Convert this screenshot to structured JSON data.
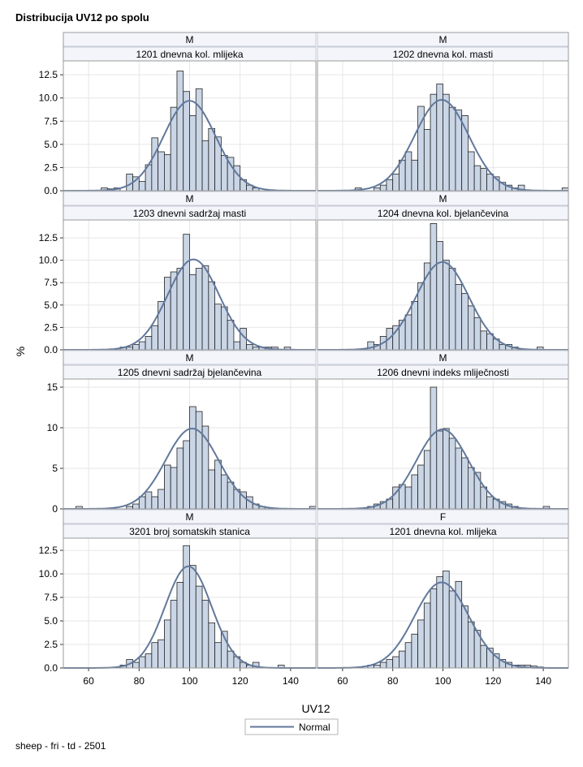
{
  "page": {
    "title": "Distribucija UV12 po spolu",
    "footnote": "sheep - fri - td - 2501"
  },
  "chart_data": {
    "type": "histogram-panel",
    "title": "Distribucija UV12 po spolu",
    "xlabel": "UV12",
    "ylabel": "%",
    "xlim": [
      50,
      150
    ],
    "x_ticks": [
      60,
      80,
      100,
      120,
      140
    ],
    "bin_width": 2.5,
    "bin_start": 52.5,
    "legend": {
      "position": "bottom-center",
      "entries": [
        "Normal"
      ]
    },
    "colors": {
      "bar_fill": "#cad6e6",
      "bar_edge": "#222222",
      "curve": "#61789c",
      "grid": "#e6e6e6",
      "header_bg": "#f3f5fb",
      "frame": "#9a9a9a"
    },
    "rows": [
      {
        "ylim": [
          0,
          14
        ],
        "y_ticks": [
          0,
          2.5,
          5,
          7.5,
          10,
          12.5
        ],
        "y_tick_labels": [
          "0.0",
          "2.5",
          "5.0",
          "7.5",
          "10.0",
          "12.5"
        ]
      },
      {
        "ylim": [
          0,
          14.5
        ],
        "y_ticks": [
          0,
          2.5,
          5,
          7.5,
          10,
          12.5
        ],
        "y_tick_labels": [
          "0.0",
          "2.5",
          "5.0",
          "7.5",
          "10.0",
          "12.5"
        ]
      },
      {
        "ylim": [
          0,
          16
        ],
        "y_ticks": [
          0,
          5,
          10,
          15
        ],
        "y_tick_labels": [
          "0",
          "5",
          "10",
          "15"
        ]
      },
      {
        "ylim": [
          0,
          13.8
        ],
        "y_ticks": [
          0,
          2.5,
          5,
          7.5,
          10,
          12.5
        ],
        "y_tick_labels": [
          "0.0",
          "2.5",
          "5.0",
          "7.5",
          "10.0",
          "12.5"
        ]
      }
    ],
    "panels": [
      {
        "sex": "M",
        "trait": "1201 dnevna kol. mlijeka",
        "normal": {
          "mean": 100,
          "sd": 10.3,
          "peak": 9.7
        },
        "bars": [
          [
            65,
            0.3
          ],
          [
            67.5,
            0.2
          ],
          [
            70,
            0.3
          ],
          [
            75,
            1.8
          ],
          [
            77.5,
            1.5
          ],
          [
            80,
            1.0
          ],
          [
            82.5,
            2.8
          ],
          [
            85,
            5.7
          ],
          [
            87.5,
            4.2
          ],
          [
            90,
            3.9
          ],
          [
            92.5,
            9.0
          ],
          [
            95,
            12.9
          ],
          [
            97.5,
            10.7
          ],
          [
            100,
            8.1
          ],
          [
            102.5,
            11.0
          ],
          [
            105,
            5.4
          ],
          [
            107.5,
            6.7
          ],
          [
            110,
            5.8
          ],
          [
            112.5,
            3.8
          ],
          [
            115,
            3.6
          ],
          [
            117.5,
            2.7
          ],
          [
            120,
            1.2
          ],
          [
            122.5,
            0.6
          ],
          [
            125,
            0.3
          ]
        ]
      },
      {
        "sex": "M",
        "trait": "1202 dnevna kol. masti",
        "normal": {
          "mean": 99.5,
          "sd": 10.8,
          "peak": 9.8
        },
        "bars": [
          [
            65,
            0.3
          ],
          [
            72.5,
            0.3
          ],
          [
            75,
            0.6
          ],
          [
            77.5,
            1.2
          ],
          [
            80,
            1.8
          ],
          [
            82.5,
            3.3
          ],
          [
            85,
            4.2
          ],
          [
            87.5,
            3.3
          ],
          [
            90,
            9.1
          ],
          [
            92.5,
            6.6
          ],
          [
            95,
            10.4
          ],
          [
            97.5,
            11.5
          ],
          [
            100,
            10.4
          ],
          [
            102.5,
            9.0
          ],
          [
            105,
            8.7
          ],
          [
            107.5,
            8.1
          ],
          [
            110,
            4.2
          ],
          [
            112.5,
            2.7
          ],
          [
            115,
            2.4
          ],
          [
            117.5,
            1.8
          ],
          [
            120,
            1.5
          ],
          [
            122.5,
            0.9
          ],
          [
            125,
            0.6
          ],
          [
            127.5,
            0.3
          ],
          [
            130,
            0.6
          ],
          [
            147.5,
            0.3
          ]
        ]
      },
      {
        "sex": "M",
        "trait": "1203 dnevni sadržaj masti",
        "normal": {
          "mean": 101.5,
          "sd": 10.2,
          "peak": 10.1
        },
        "bars": [
          [
            72.5,
            0.3
          ],
          [
            75,
            0.3
          ],
          [
            77.5,
            0.6
          ],
          [
            80,
            0.9
          ],
          [
            82.5,
            1.5
          ],
          [
            85,
            2.7
          ],
          [
            87.5,
            5.4
          ],
          [
            90,
            8.1
          ],
          [
            92.5,
            8.7
          ],
          [
            95,
            9.1
          ],
          [
            97.5,
            12.9
          ],
          [
            100,
            8.4
          ],
          [
            102.5,
            9.1
          ],
          [
            105,
            9.4
          ],
          [
            107.5,
            7.6
          ],
          [
            110,
            5.1
          ],
          [
            112.5,
            4.8
          ],
          [
            115,
            3.3
          ],
          [
            117.5,
            0.9
          ],
          [
            120,
            2.4
          ],
          [
            122.5,
            0.6
          ],
          [
            125,
            0.3
          ],
          [
            127.5,
            0.3
          ],
          [
            130,
            0.3
          ],
          [
            132.5,
            0.3
          ],
          [
            137.5,
            0.3
          ]
        ]
      },
      {
        "sex": "M",
        "trait": "1204 dnevna kol. bjelančevina",
        "normal": {
          "mean": 99.8,
          "sd": 10.5,
          "peak": 9.8
        },
        "bars": [
          [
            70,
            0.9
          ],
          [
            72.5,
            0.6
          ],
          [
            75,
            1.5
          ],
          [
            77.5,
            2.4
          ],
          [
            80,
            2.7
          ],
          [
            82.5,
            3.3
          ],
          [
            85,
            3.9
          ],
          [
            87.5,
            5.4
          ],
          [
            90,
            7.5
          ],
          [
            92.5,
            9.7
          ],
          [
            95,
            14.1
          ],
          [
            97.5,
            12.1
          ],
          [
            100,
            10.0
          ],
          [
            102.5,
            9.1
          ],
          [
            105,
            7.3
          ],
          [
            107.5,
            6.3
          ],
          [
            110,
            4.9
          ],
          [
            112.5,
            3.6
          ],
          [
            115,
            2.1
          ],
          [
            117.5,
            1.8
          ],
          [
            120,
            1.2
          ],
          [
            122.5,
            0.6
          ],
          [
            125,
            0.6
          ],
          [
            127.5,
            0.3
          ],
          [
            137.5,
            0.3
          ]
        ]
      },
      {
        "sex": "M",
        "trait": "1205 dnevni sadržaj bjelančevina",
        "normal": {
          "mean": 101,
          "sd": 10.5,
          "peak": 9.9
        },
        "bars": [
          [
            55,
            0.3
          ],
          [
            75,
            0.3
          ],
          [
            77.5,
            0.6
          ],
          [
            80,
            1.5
          ],
          [
            82.5,
            2.1
          ],
          [
            85,
            1.5
          ],
          [
            87.5,
            2.4
          ],
          [
            90,
            5.4
          ],
          [
            92.5,
            5.1
          ],
          [
            95,
            7.5
          ],
          [
            97.5,
            8.4
          ],
          [
            100,
            12.6
          ],
          [
            102.5,
            12.0
          ],
          [
            105,
            10.2
          ],
          [
            107.5,
            4.8
          ],
          [
            110,
            6.0
          ],
          [
            112.5,
            4.2
          ],
          [
            115,
            3.3
          ],
          [
            117.5,
            2.4
          ],
          [
            120,
            2.1
          ],
          [
            122.5,
            1.5
          ],
          [
            125,
            0.6
          ],
          [
            127.5,
            0.3
          ],
          [
            147.5,
            0.3
          ]
        ]
      },
      {
        "sex": "M",
        "trait": "1206 dnevni indeks mliječnosti",
        "normal": {
          "mean": 99.8,
          "sd": 10.4,
          "peak": 9.8
        },
        "bars": [
          [
            70,
            0.3
          ],
          [
            72.5,
            0.6
          ],
          [
            75,
            0.9
          ],
          [
            77.5,
            1.2
          ],
          [
            80,
            2.7
          ],
          [
            82.5,
            3.0
          ],
          [
            85,
            2.7
          ],
          [
            87.5,
            4.2
          ],
          [
            90,
            5.4
          ],
          [
            92.5,
            7.2
          ],
          [
            95,
            15.0
          ],
          [
            97.5,
            9.6
          ],
          [
            100,
            9.9
          ],
          [
            102.5,
            8.7
          ],
          [
            105,
            7.5
          ],
          [
            107.5,
            6.3
          ],
          [
            110,
            5.1
          ],
          [
            112.5,
            4.5
          ],
          [
            115,
            2.7
          ],
          [
            117.5,
            1.5
          ],
          [
            120,
            1.2
          ],
          [
            122.5,
            0.9
          ],
          [
            125,
            0.6
          ],
          [
            127.5,
            0.3
          ],
          [
            140,
            0.3
          ]
        ]
      },
      {
        "sex": "M",
        "trait": "3201 broj somatskih stanica",
        "normal": {
          "mean": 99.5,
          "sd": 9.2,
          "peak": 10.8
        },
        "bars": [
          [
            72.5,
            0.3
          ],
          [
            75,
            0.9
          ],
          [
            77.5,
            0.6
          ],
          [
            80,
            1.2
          ],
          [
            82.5,
            1.5
          ],
          [
            85,
            2.7
          ],
          [
            87.5,
            3.0
          ],
          [
            90,
            5.1
          ],
          [
            92.5,
            7.2
          ],
          [
            95,
            9.1
          ],
          [
            97.5,
            13.0
          ],
          [
            100,
            10.9
          ],
          [
            102.5,
            8.7
          ],
          [
            105,
            7.2
          ],
          [
            107.5,
            4.8
          ],
          [
            110,
            2.7
          ],
          [
            112.5,
            3.9
          ],
          [
            115,
            1.8
          ],
          [
            117.5,
            1.2
          ],
          [
            120,
            0.6
          ],
          [
            122.5,
            0.3
          ],
          [
            125,
            0.6
          ],
          [
            135,
            0.3
          ]
        ]
      },
      {
        "sex": "F",
        "trait": "1201 dnevna kol. mlijeka",
        "normal": {
          "mean": 99.5,
          "sd": 10.8,
          "peak": 9.1
        },
        "bars": [
          [
            70,
            0.3
          ],
          [
            72.5,
            0.3
          ],
          [
            75,
            0.6
          ],
          [
            77.5,
            0.9
          ],
          [
            80,
            1.2
          ],
          [
            82.5,
            1.8
          ],
          [
            85,
            2.7
          ],
          [
            87.5,
            3.6
          ],
          [
            90,
            5.1
          ],
          [
            92.5,
            6.9
          ],
          [
            95,
            8.4
          ],
          [
            97.5,
            9.7
          ],
          [
            100,
            10.3
          ],
          [
            102.5,
            8.2
          ],
          [
            105,
            9.2
          ],
          [
            107.5,
            6.6
          ],
          [
            110,
            4.9
          ],
          [
            112.5,
            4.0
          ],
          [
            115,
            2.4
          ],
          [
            117.5,
            2.1
          ],
          [
            120,
            1.5
          ],
          [
            122.5,
            0.9
          ],
          [
            125,
            0.6
          ],
          [
            127.5,
            0.3
          ],
          [
            130,
            0.3
          ],
          [
            132.5,
            0.3
          ],
          [
            135,
            0.2
          ],
          [
            137.5,
            0.1
          ]
        ]
      }
    ]
  }
}
